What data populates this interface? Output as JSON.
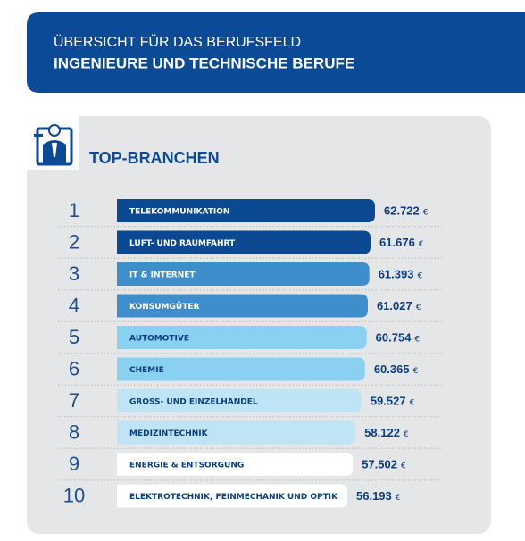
{
  "header": {
    "subtitle": "ÜBERSICHT FÜR DAS BERUFSFELD",
    "title": "INGENIEURE UND TECHNISCHE BERUFE"
  },
  "chart_data": {
    "type": "bar",
    "orientation": "horizontal",
    "title": "TOP-BRANCHEN",
    "ranks": [
      1,
      2,
      3,
      4,
      5,
      6,
      7,
      8,
      9,
      10
    ],
    "categories": [
      "TELEKOMMUNIKATION",
      "LUFT- UND RAUMFAHRT",
      "IT & INTERNET",
      "KONSUMGÜTER",
      "AUTOMOTIVE",
      "CHEMIE",
      "GROSS- UND EINZELHANDEL",
      "MEDIZINTECHNIK",
      "ENERGIE & ENTSORGUNG",
      "ELEKTROTECHNIK, FEINMECHANIK UND OPTIK"
    ],
    "values": [
      62722,
      61676,
      61393,
      61027,
      60754,
      60365,
      59527,
      58122,
      57502,
      56193
    ],
    "value_labels": [
      "62.722",
      "61.676",
      "61.393",
      "61.027",
      "60.754",
      "60.365",
      "59.527",
      "58.122",
      "57.502",
      "56.193"
    ],
    "unit": "€",
    "colors": [
      "#0b4a92",
      "#0b4a92",
      "#3d8ecb",
      "#3d8ecb",
      "#8ad0f0",
      "#8ad0f0",
      "#bfe4f6",
      "#bfe4f6",
      "#ffffff",
      "#ffffff"
    ],
    "text_colors": [
      "#ffffff",
      "#ffffff",
      "#ffffff",
      "#ffffff",
      "#0b3f80",
      "#0b3f80",
      "#0b3f80",
      "#0b3f80",
      "#0b3f80",
      "#0b3f80"
    ]
  }
}
